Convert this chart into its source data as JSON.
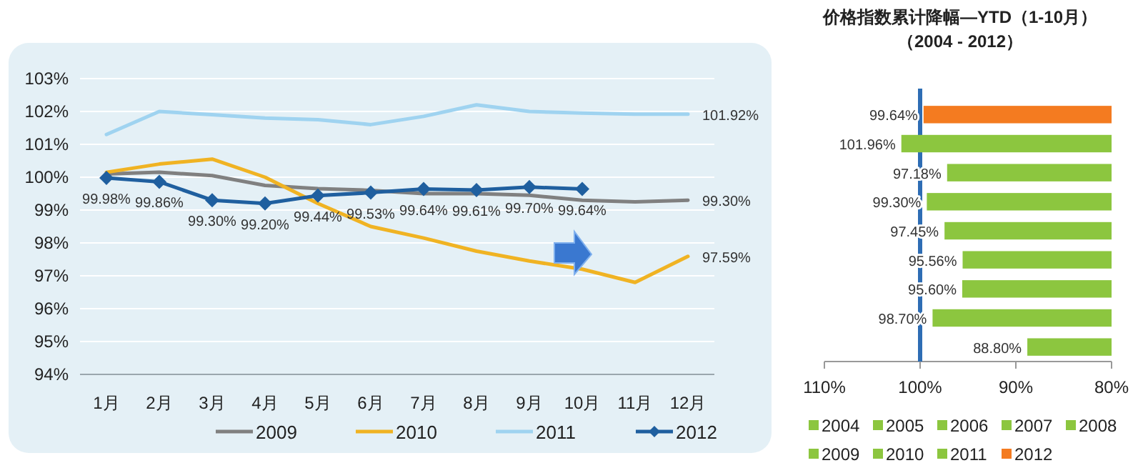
{
  "chart_data": [
    {
      "type": "line",
      "categories": [
        "1月",
        "2月",
        "3月",
        "4月",
        "5月",
        "6月",
        "7月",
        "8月",
        "9月",
        "10月",
        "11月",
        "12月"
      ],
      "series": [
        {
          "name": "2009",
          "color": "#808080",
          "marker": "none",
          "values": [
            100.1,
            100.15,
            100.05,
            99.75,
            99.65,
            99.6,
            99.5,
            99.5,
            99.45,
            99.3,
            99.25,
            99.3
          ],
          "value_labels": [
            null,
            null,
            null,
            null,
            null,
            null,
            null,
            null,
            null,
            null,
            null,
            "99.30%"
          ]
        },
        {
          "name": "2010",
          "color": "#f0b323",
          "marker": "none",
          "values": [
            100.15,
            100.4,
            100.55,
            100.0,
            99.2,
            98.5,
            98.15,
            97.75,
            97.45,
            97.2,
            96.8,
            97.59
          ],
          "value_labels": [
            null,
            null,
            null,
            null,
            null,
            null,
            null,
            null,
            null,
            null,
            null,
            "97.59%"
          ]
        },
        {
          "name": "2011",
          "color": "#9fd3f0",
          "marker": "none",
          "values": [
            101.3,
            102.0,
            101.9,
            101.8,
            101.75,
            101.6,
            101.85,
            102.2,
            102.0,
            101.95,
            101.92,
            101.92
          ],
          "value_labels": [
            null,
            null,
            null,
            null,
            null,
            null,
            null,
            null,
            null,
            null,
            null,
            "101.92%"
          ]
        },
        {
          "name": "2012",
          "color": "#1f5f9f",
          "marker": "diamond",
          "values": [
            99.98,
            99.86,
            99.3,
            99.2,
            99.44,
            99.53,
            99.64,
            99.61,
            99.7,
            99.64,
            null,
            null
          ],
          "value_labels": [
            "99.98%",
            "99.86%",
            "99.30%",
            "99.20%",
            "99.44%",
            "99.53%",
            "99.64%",
            "99.61%",
            "99.70%",
            "99.64%",
            null,
            null
          ]
        }
      ],
      "ylim": [
        94,
        103
      ],
      "yticks": [
        {
          "value": 94,
          "label": "94%"
        },
        {
          "value": 95,
          "label": "95%"
        },
        {
          "value": 96,
          "label": "96%"
        },
        {
          "value": 97,
          "label": "97%"
        },
        {
          "value": 98,
          "label": "98%"
        },
        {
          "value": 99,
          "label": "99%"
        },
        {
          "value": 100,
          "label": "100%"
        },
        {
          "value": 101,
          "label": "101%"
        },
        {
          "value": 102,
          "label": "102%"
        },
        {
          "value": 103,
          "label": "103%"
        }
      ],
      "grid": "y",
      "legend": "bottom",
      "line_style": "solid"
    },
    {
      "type": "bar",
      "orientation": "horizontal",
      "title": "价格指数累计降幅—YTD（1-10月）",
      "subtitle": "（2004 - 2012）",
      "categories": [
        null,
        null,
        null,
        null,
        null,
        null,
        null,
        null,
        null
      ],
      "series": [
        {
          "name": "2004",
          "color": "#8cc63f",
          "values": [
            null,
            null,
            null,
            null,
            null,
            null,
            null,
            null,
            88.8
          ],
          "value_labels": [
            null,
            null,
            null,
            null,
            null,
            null,
            null,
            null,
            "88.80%"
          ]
        },
        {
          "name": "2005",
          "color": "#8cc63f",
          "values": [
            null,
            null,
            null,
            null,
            null,
            null,
            null,
            98.7,
            null
          ],
          "value_labels": [
            null,
            null,
            null,
            null,
            null,
            null,
            null,
            "98.70%",
            null
          ]
        },
        {
          "name": "2006",
          "color": "#8cc63f",
          "values": [
            null,
            null,
            null,
            null,
            null,
            null,
            95.6,
            null,
            null
          ],
          "value_labels": [
            null,
            null,
            null,
            null,
            null,
            null,
            "95.60%",
            null,
            null
          ]
        },
        {
          "name": "2007",
          "color": "#8cc63f",
          "values": [
            null,
            null,
            null,
            null,
            null,
            95.56,
            null,
            null,
            null
          ],
          "value_labels": [
            null,
            null,
            null,
            null,
            null,
            "95.56%",
            null,
            null,
            null
          ]
        },
        {
          "name": "2008",
          "color": "#8cc63f",
          "values": [
            null,
            null,
            null,
            null,
            97.45,
            null,
            null,
            null,
            null
          ],
          "value_labels": [
            null,
            null,
            null,
            null,
            "97.45%",
            null,
            null,
            null,
            null
          ]
        },
        {
          "name": "2009",
          "color": "#8cc63f",
          "values": [
            null,
            null,
            null,
            99.3,
            null,
            null,
            null,
            null,
            null
          ],
          "value_labels": [
            null,
            null,
            null,
            "99.30%",
            null,
            null,
            null,
            null,
            null
          ]
        },
        {
          "name": "2010",
          "color": "#8cc63f",
          "values": [
            null,
            null,
            97.18,
            null,
            null,
            null,
            null,
            null,
            null
          ],
          "value_labels": [
            null,
            null,
            "97.18%",
            null,
            null,
            null,
            null,
            null,
            null
          ]
        },
        {
          "name": "2011",
          "color": "#8cc63f",
          "values": [
            null,
            101.96,
            null,
            null,
            null,
            null,
            null,
            null,
            null
          ],
          "value_labels": [
            null,
            "101.96%",
            null,
            null,
            null,
            null,
            null,
            null,
            null
          ]
        },
        {
          "name": "2012",
          "color": "#f47b20",
          "values": [
            99.64,
            null,
            null,
            null,
            null,
            null,
            null,
            null,
            null
          ],
          "value_labels": [
            "99.64%",
            null,
            null,
            null,
            null,
            null,
            null,
            null,
            null
          ]
        }
      ],
      "xlim": [
        110,
        80
      ],
      "xticks": [
        {
          "value": 110,
          "label": "110%"
        },
        {
          "value": 100,
          "label": "100%"
        },
        {
          "value": 90,
          "label": "90%"
        },
        {
          "value": 80,
          "label": "80%"
        }
      ],
      "legend": "bottom",
      "grid": false,
      "ref_lines": [
        {
          "axis": "x",
          "value": 100,
          "label": null,
          "color": "#2e6db4"
        }
      ]
    }
  ]
}
